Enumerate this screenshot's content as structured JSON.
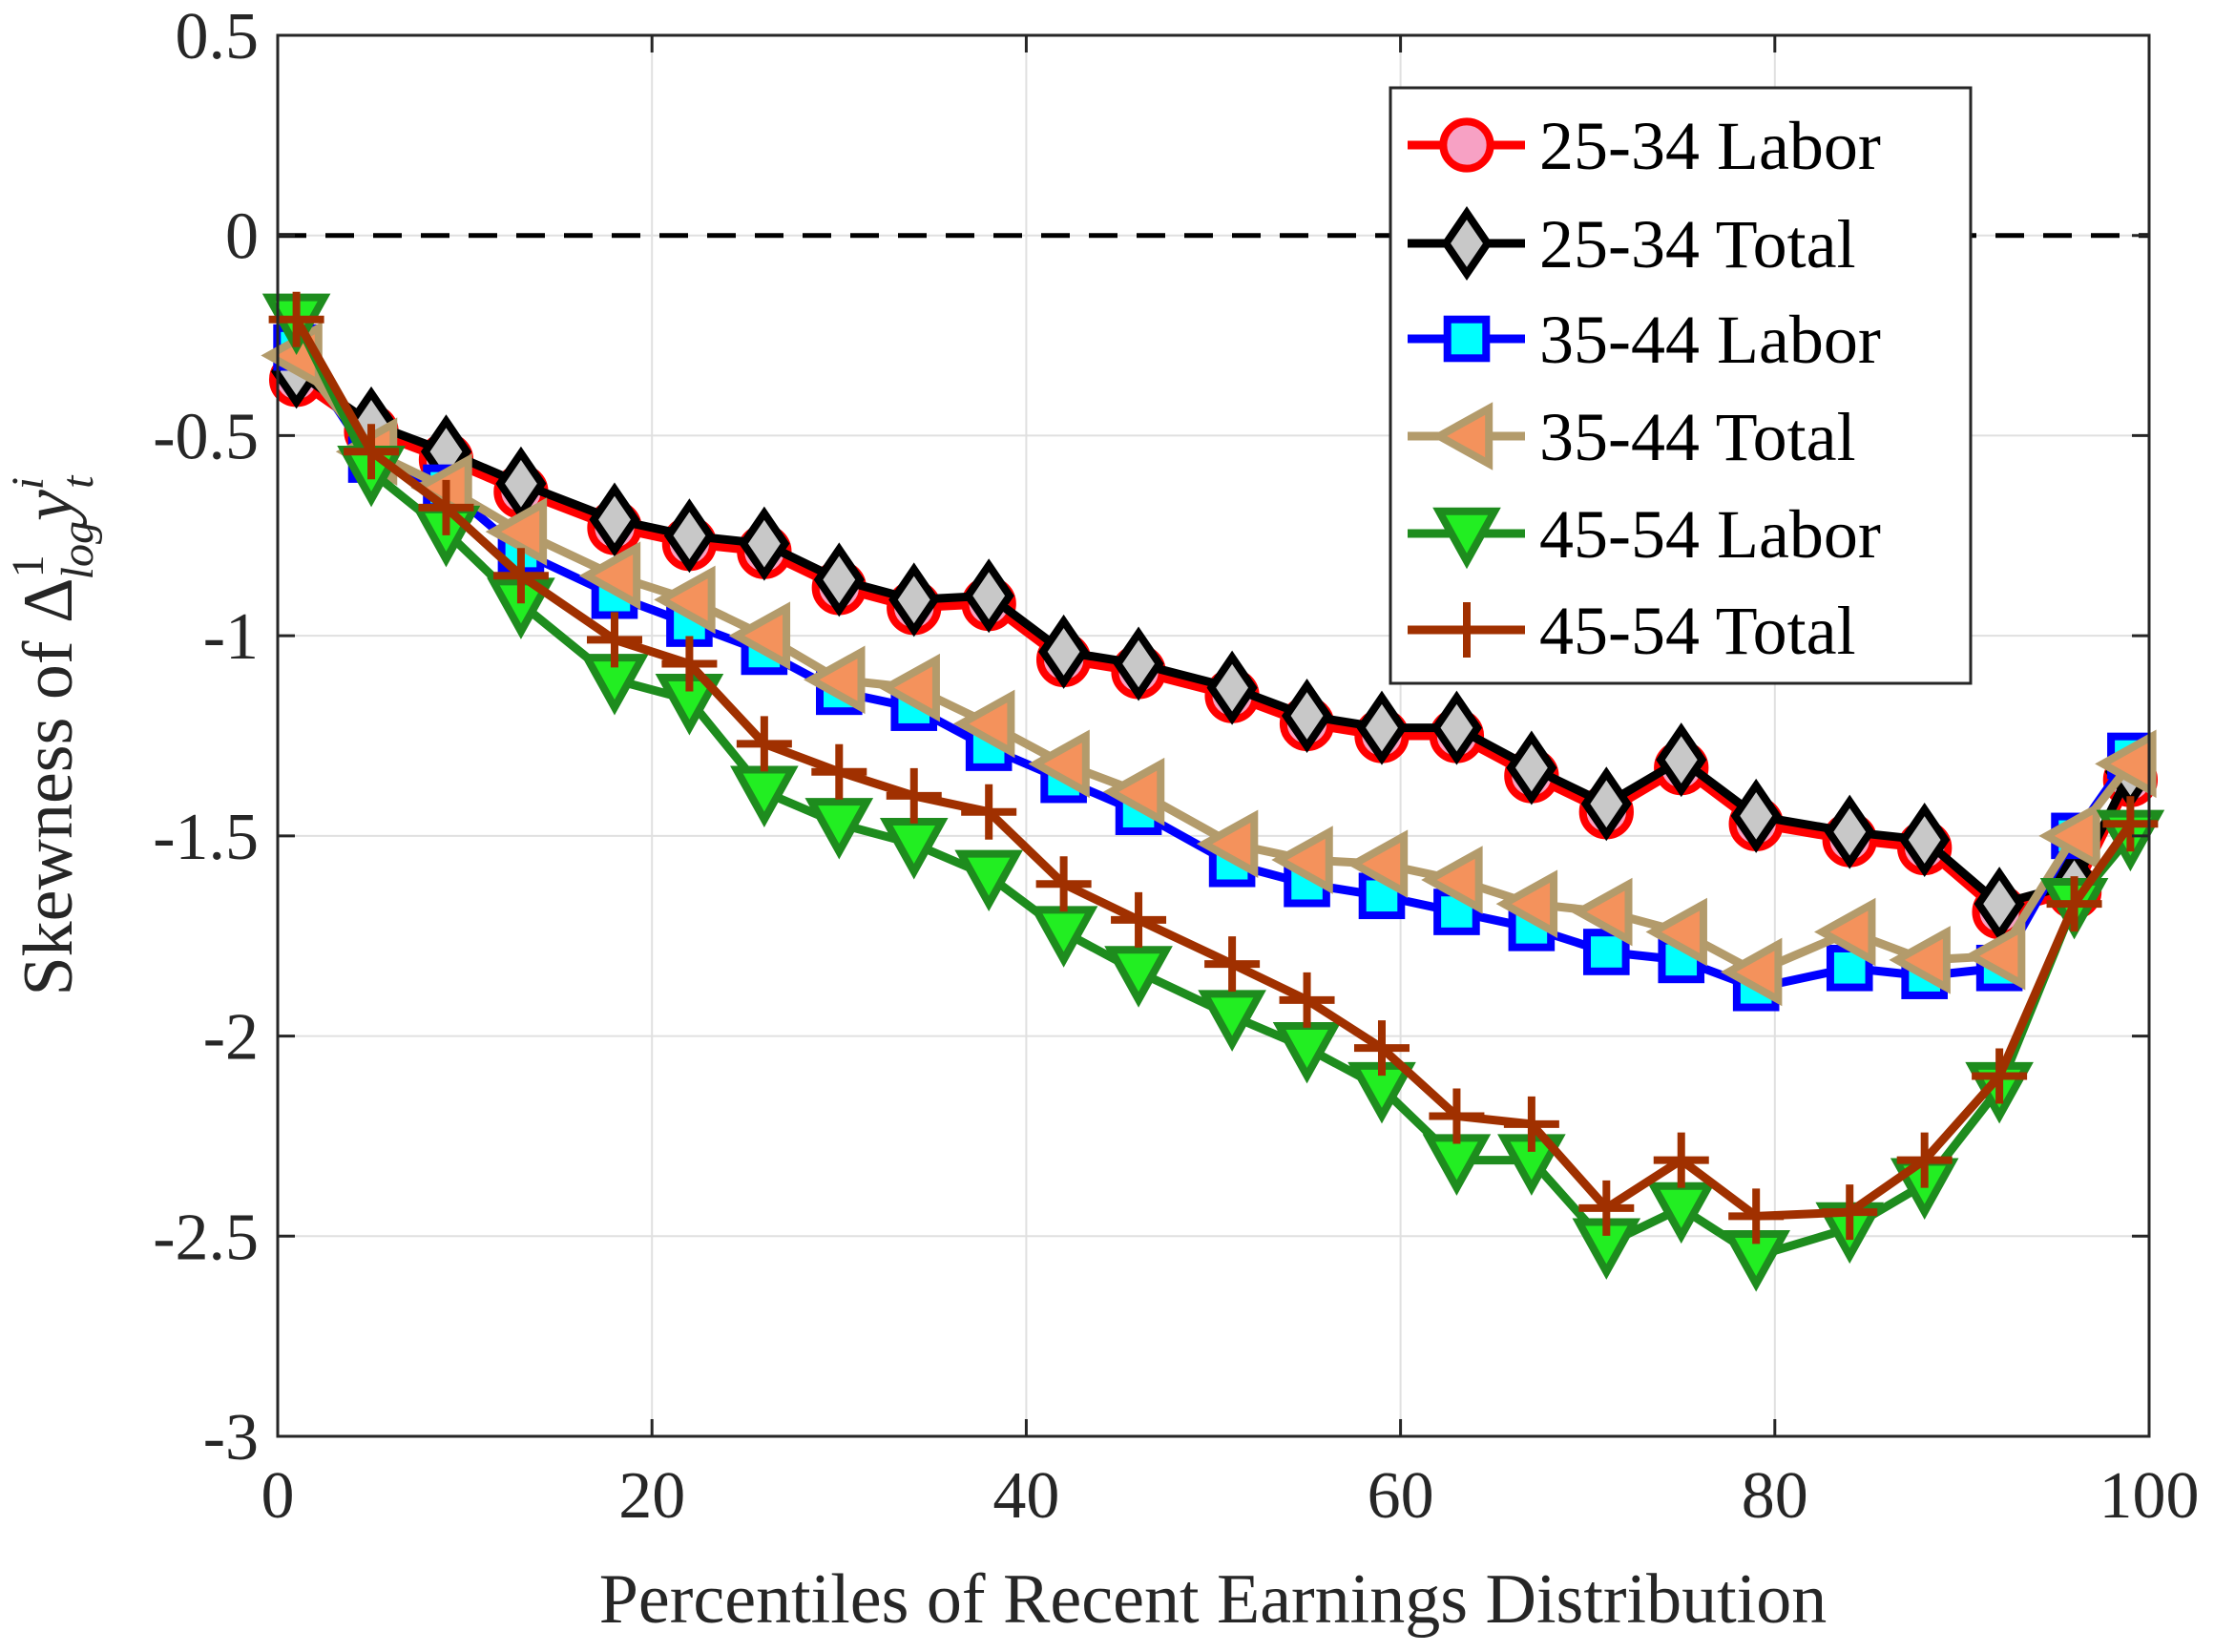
{
  "chart_data": {
    "type": "line",
    "title": "",
    "xlabel": "Percentiles of Recent Earnings Distribution",
    "ylabel": {
      "prefix": "Skewness of ",
      "symbol": "Δ",
      "sup": "1",
      "sub": "log",
      "var": "y",
      "var_sup": "i",
      "var_sub": "t"
    },
    "xlim": [
      0,
      100
    ],
    "ylim": [
      -3,
      0.5
    ],
    "xticks": [
      0,
      20,
      40,
      60,
      80,
      100
    ],
    "yticks": [
      0.5,
      0,
      -0.5,
      -1,
      -1.5,
      -2,
      -2.5,
      -3
    ],
    "ytick_labels": [
      "0.5",
      "0",
      "-0.5",
      "-1",
      "-1.5",
      "-2",
      "-2.5",
      "-3"
    ],
    "grid": true,
    "reference_line": {
      "y": 0,
      "style": "dashed",
      "color": "#000000"
    },
    "legend_placement": "top-right",
    "x": [
      1,
      5,
      9,
      13,
      18,
      22,
      26,
      30,
      34,
      38,
      42,
      46,
      51,
      55,
      59,
      63,
      67,
      71,
      75,
      79,
      84,
      88,
      92,
      96,
      99
    ],
    "series": [
      {
        "name": "25-34 Labor",
        "marker": "circle",
        "line_color": "#ff0000",
        "fill_color": "#f7a1c4",
        "values": [
          -0.36,
          -0.49,
          -0.56,
          -0.64,
          -0.73,
          -0.77,
          -0.79,
          -0.88,
          -0.93,
          -0.92,
          -1.06,
          -1.09,
          -1.15,
          -1.22,
          -1.25,
          -1.25,
          -1.35,
          -1.44,
          -1.33,
          -1.47,
          -1.51,
          -1.53,
          -1.69,
          -1.64,
          -1.36
        ]
      },
      {
        "name": "25-34 Total",
        "marker": "diamond",
        "line_color": "#000000",
        "fill_color": "#c8c8c8",
        "values": [
          -0.34,
          -0.47,
          -0.54,
          -0.62,
          -0.71,
          -0.75,
          -0.77,
          -0.86,
          -0.91,
          -0.9,
          -1.04,
          -1.07,
          -1.13,
          -1.2,
          -1.23,
          -1.23,
          -1.33,
          -1.42,
          -1.31,
          -1.45,
          -1.49,
          -1.51,
          -1.67,
          -1.62,
          -1.34
        ]
      },
      {
        "name": "35-44 Labor",
        "marker": "square",
        "line_color": "#0000ff",
        "fill_color": "#00ffff",
        "values": [
          -0.28,
          -0.56,
          -0.63,
          -0.79,
          -0.9,
          -0.97,
          -1.04,
          -1.14,
          -1.18,
          -1.28,
          -1.36,
          -1.44,
          -1.57,
          -1.62,
          -1.65,
          -1.69,
          -1.73,
          -1.79,
          -1.81,
          -1.88,
          -1.83,
          -1.85,
          -1.83,
          -1.5,
          -1.3
        ]
      },
      {
        "name": "35-44 Total",
        "marker": "triangle-left",
        "line_color": "#b39b6b",
        "fill_color": "#f4925c",
        "values": [
          -0.3,
          -0.54,
          -0.63,
          -0.74,
          -0.85,
          -0.91,
          -1.0,
          -1.11,
          -1.13,
          -1.22,
          -1.32,
          -1.39,
          -1.52,
          -1.56,
          -1.57,
          -1.61,
          -1.67,
          -1.69,
          -1.74,
          -1.84,
          -1.74,
          -1.81,
          -1.8,
          -1.5,
          -1.32
        ]
      },
      {
        "name": "45-54 Labor",
        "marker": "triangle-down",
        "line_color": "#1e8c1e",
        "fill_color": "#22ee22",
        "values": [
          -0.21,
          -0.59,
          -0.74,
          -0.92,
          -1.11,
          -1.16,
          -1.39,
          -1.47,
          -1.52,
          -1.6,
          -1.74,
          -1.84,
          -1.95,
          -2.03,
          -2.13,
          -2.31,
          -2.31,
          -2.52,
          -2.43,
          -2.55,
          -2.48,
          -2.37,
          -2.13,
          -1.67,
          -1.5
        ]
      },
      {
        "name": "45-54 Total",
        "marker": "plus",
        "line_color": "#a03000",
        "fill_color": "#a03000",
        "values": [
          -0.21,
          -0.54,
          -0.68,
          -0.85,
          -1.01,
          -1.07,
          -1.27,
          -1.34,
          -1.4,
          -1.44,
          -1.62,
          -1.71,
          -1.82,
          -1.91,
          -2.03,
          -2.2,
          -2.22,
          -2.43,
          -2.31,
          -2.45,
          -2.44,
          -2.31,
          -2.1,
          -1.67,
          -1.47
        ]
      }
    ]
  }
}
